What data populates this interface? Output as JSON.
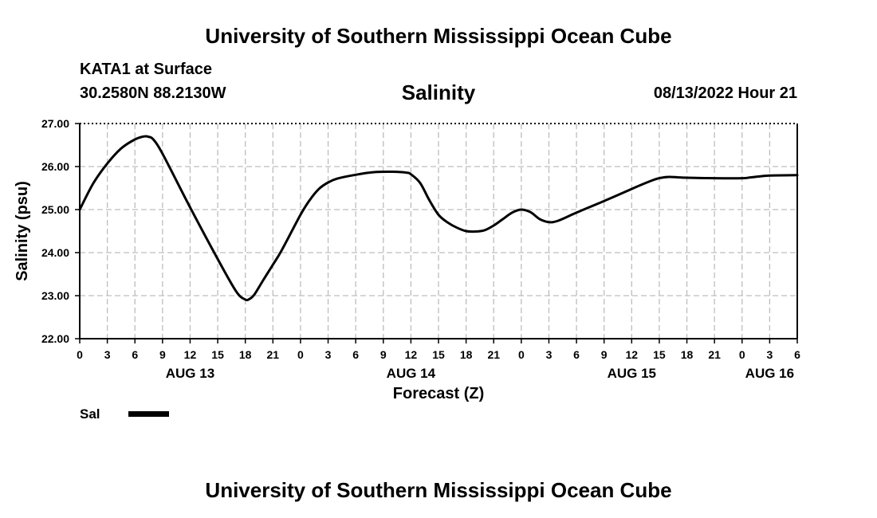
{
  "header": {
    "title_top": "University of Southern Mississippi Ocean Cube",
    "station": "KATA1 at Surface",
    "coords": "30.2580N  88.2130W",
    "parameter": "Salinity",
    "datetime": "08/13/2022 Hour 21",
    "title_bottom": "University of Southern Mississippi Ocean Cube"
  },
  "chart_data": {
    "type": "line",
    "title": "Salinity",
    "xlabel": "Forecast (Z)",
    "ylabel": "Salinity (psu)",
    "xlim": [
      0,
      78
    ],
    "ylim": [
      22,
      27
    ],
    "grid": true,
    "legend_position": "bottom-left",
    "yticks": [
      "22.00",
      "23.00",
      "24.00",
      "25.00",
      "26.00",
      "27.00"
    ],
    "xtick_labels": [
      "0",
      "3",
      "6",
      "9",
      "12",
      "15",
      "18",
      "21",
      "0",
      "3",
      "6",
      "9",
      "12",
      "15",
      "18",
      "21",
      "0",
      "3",
      "6",
      "9",
      "12",
      "15",
      "18",
      "21",
      "0",
      "3",
      "6"
    ],
    "date_labels": [
      {
        "label": "AUG 13",
        "at": 12
      },
      {
        "label": "AUG 14",
        "at": 36
      },
      {
        "label": "AUG 15",
        "at": 60
      },
      {
        "label": "AUG 16",
        "at": 75
      }
    ],
    "series": [
      {
        "name": "Sal",
        "color": "#000000",
        "x": [
          0,
          1.5,
          3,
          4.5,
          6,
          7,
          7.5,
          8,
          9,
          12,
          15,
          17,
          18,
          18.5,
          19,
          20,
          21,
          22,
          24,
          25,
          26,
          27,
          28,
          30,
          32,
          34,
          35.5,
          36,
          37,
          38,
          39,
          40,
          41,
          42,
          43,
          44,
          45,
          46,
          47,
          48,
          49,
          50,
          51,
          52,
          54,
          57,
          60,
          62,
          63,
          64,
          65,
          66,
          69,
          72,
          73,
          75,
          78
        ],
        "y": [
          25.0,
          25.62,
          26.07,
          26.42,
          26.63,
          26.7,
          26.69,
          26.63,
          26.3,
          25.05,
          23.85,
          23.1,
          22.91,
          22.93,
          23.03,
          23.38,
          23.72,
          24.07,
          24.88,
          25.22,
          25.48,
          25.63,
          25.72,
          25.81,
          25.87,
          25.88,
          25.86,
          25.82,
          25.62,
          25.22,
          24.88,
          24.7,
          24.58,
          24.5,
          24.49,
          24.52,
          24.63,
          24.78,
          24.93,
          25.0,
          24.94,
          24.78,
          24.71,
          24.74,
          24.93,
          25.2,
          25.48,
          25.66,
          25.73,
          25.76,
          25.75,
          25.74,
          25.73,
          25.73,
          25.75,
          25.79,
          25.8
        ]
      }
    ]
  },
  "legend": {
    "label": "Sal"
  }
}
